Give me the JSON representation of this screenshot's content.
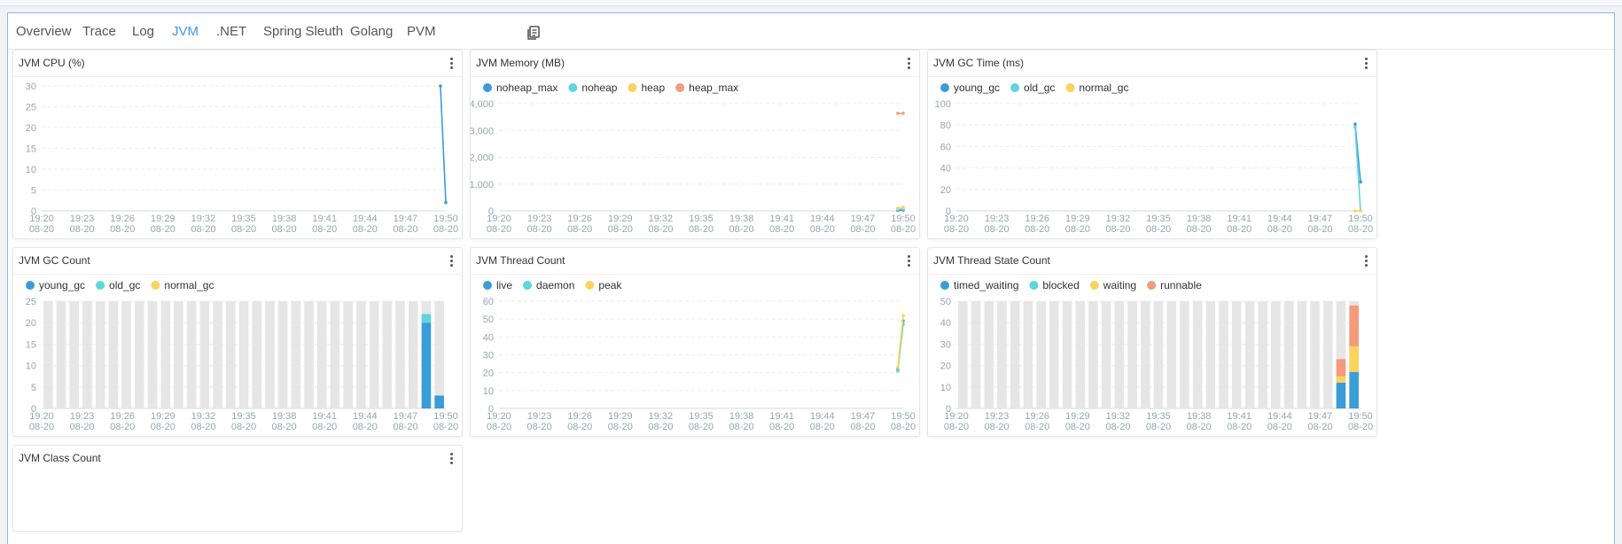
{
  "tabs": [
    {
      "label": "Overview",
      "active": false
    },
    {
      "label": "Trace",
      "active": false
    },
    {
      "label": "Log",
      "active": false
    },
    {
      "label": "JVM",
      "active": true
    },
    {
      "label": ".NET",
      "active": false
    },
    {
      "label": "Spring Sleuth",
      "active": false
    },
    {
      "label": "Golang",
      "active": false
    },
    {
      "label": "PVM",
      "active": false
    }
  ],
  "tab_icon": "copy-icon",
  "colors": {
    "blue": "#3a9cd9",
    "cyan": "#5fd5dc",
    "yellow": "#fbd35c",
    "salmon": "#f59a7b",
    "bg": "#e6e6e6",
    "grid": "#eeeeee",
    "axis": "#9aa4b0",
    "active_tab": "#3f9ae3"
  },
  "time_labels": [
    "19:20",
    "19:23",
    "19:26",
    "19:29",
    "19:32",
    "19:35",
    "19:38",
    "19:41",
    "19:44",
    "19:47",
    "19:50"
  ],
  "date_label": "08-20",
  "charts": [
    {
      "title": "JVM CPU (%)",
      "chart_data": {
        "type": "line",
        "legend": [],
        "ylim": [
          0,
          30
        ],
        "yticks": [
          "0",
          "5",
          "10",
          "15",
          "20",
          "25",
          "30"
        ],
        "series": [
          {
            "name": "",
            "color": "#3a9cd9",
            "points": [
              [
                29.6,
                30
              ],
              [
                30,
                2
              ]
            ]
          }
        ]
      }
    },
    {
      "title": "JVM Memory (MB)",
      "chart_data": {
        "type": "line",
        "legend": [
          "noheap_max",
          "noheap",
          "heap",
          "heap_max"
        ],
        "ylim": [
          0,
          4000
        ],
        "yticks": [
          "0",
          "1,000",
          "2,000",
          "3,000",
          "4,000"
        ],
        "series": [
          {
            "name": "noheap_max",
            "color": "#3a9cd9",
            "points": [
              [
                29.6,
                20
              ],
              [
                30,
                30
              ]
            ]
          },
          {
            "name": "noheap",
            "color": "#5fd5dc",
            "points": [
              [
                29.6,
                60
              ],
              [
                30,
                70
              ]
            ]
          },
          {
            "name": "heap",
            "color": "#fbd35c",
            "points": [
              [
                29.6,
                100
              ],
              [
                30,
                130
              ]
            ]
          },
          {
            "name": "heap_max",
            "color": "#f59a7b",
            "points": [
              [
                29.6,
                3640
              ],
              [
                30,
                3640
              ]
            ]
          }
        ]
      }
    },
    {
      "title": "JVM GC Time (ms)",
      "chart_data": {
        "type": "line",
        "legend": [
          "young_gc",
          "old_gc",
          "normal_gc"
        ],
        "ylim": [
          0,
          100
        ],
        "yticks": [
          "0",
          "20",
          "40",
          "60",
          "80",
          "100"
        ],
        "series": [
          {
            "name": "young_gc",
            "color": "#3a9cd9",
            "points": [
              [
                29.6,
                81
              ],
              [
                30,
                27
              ]
            ]
          },
          {
            "name": "old_gc",
            "color": "#5fd5dc",
            "points": [
              [
                29.6,
                78
              ],
              [
                30,
                0
              ]
            ]
          },
          {
            "name": "normal_gc",
            "color": "#fbd35c",
            "points": [
              [
                29.6,
                0
              ],
              [
                30,
                0
              ]
            ]
          }
        ]
      }
    },
    {
      "title": "JVM GC Count",
      "chart_data": {
        "type": "bar",
        "legend": [
          "young_gc",
          "old_gc",
          "normal_gc"
        ],
        "ylim": [
          0,
          25
        ],
        "yticks": [
          "0",
          "5",
          "10",
          "15",
          "20",
          "25"
        ],
        "series": [
          {
            "name": "young_gc",
            "color": "#3a9cd9",
            "values": [
              [
                29,
                20
              ],
              [
                30,
                3
              ]
            ]
          },
          {
            "name": "old_gc",
            "color": "#5fd5dc",
            "values": [
              [
                29,
                2
              ],
              [
                30,
                0
              ]
            ]
          },
          {
            "name": "normal_gc",
            "color": "#fbd35c",
            "values": [
              [
                29,
                0
              ],
              [
                30,
                0
              ]
            ]
          }
        ]
      }
    },
    {
      "title": "JVM Thread Count",
      "chart_data": {
        "type": "line",
        "legend": [
          "live",
          "daemon",
          "peak"
        ],
        "ylim": [
          0,
          60
        ],
        "yticks": [
          "0",
          "10",
          "20",
          "30",
          "40",
          "50",
          "60"
        ],
        "series": [
          {
            "name": "live",
            "color": "#3a9cd9",
            "points": [
              [
                29.6,
                22
              ],
              [
                30,
                49
              ]
            ]
          },
          {
            "name": "daemon",
            "color": "#5fd5dc",
            "points": [
              [
                29.6,
                21
              ],
              [
                30,
                47
              ]
            ]
          },
          {
            "name": "peak",
            "color": "#fbd35c",
            "points": [
              [
                29.6,
                23
              ],
              [
                30,
                52
              ]
            ]
          }
        ]
      }
    },
    {
      "title": "JVM Thread State Count",
      "chart_data": {
        "type": "bar",
        "legend": [
          "timed_waiting",
          "blocked",
          "waiting",
          "runnable"
        ],
        "ylim": [
          0,
          50
        ],
        "yticks": [
          "0",
          "10",
          "20",
          "30",
          "40",
          "50"
        ],
        "series": [
          {
            "name": "timed_waiting",
            "color": "#3a9cd9",
            "values": [
              [
                29,
                12
              ],
              [
                30,
                17
              ]
            ]
          },
          {
            "name": "blocked",
            "color": "#5fd5dc",
            "values": [
              [
                29,
                0
              ],
              [
                30,
                0
              ]
            ]
          },
          {
            "name": "waiting",
            "color": "#fbd35c",
            "values": [
              [
                29,
                3
              ],
              [
                30,
                12
              ]
            ]
          },
          {
            "name": "runnable",
            "color": "#f59a7b",
            "values": [
              [
                29,
                8
              ],
              [
                30,
                19
              ]
            ]
          }
        ]
      }
    },
    {
      "title": "JVM Class Count",
      "chart_data": {
        "type": "line",
        "legend": [],
        "series": []
      }
    }
  ]
}
